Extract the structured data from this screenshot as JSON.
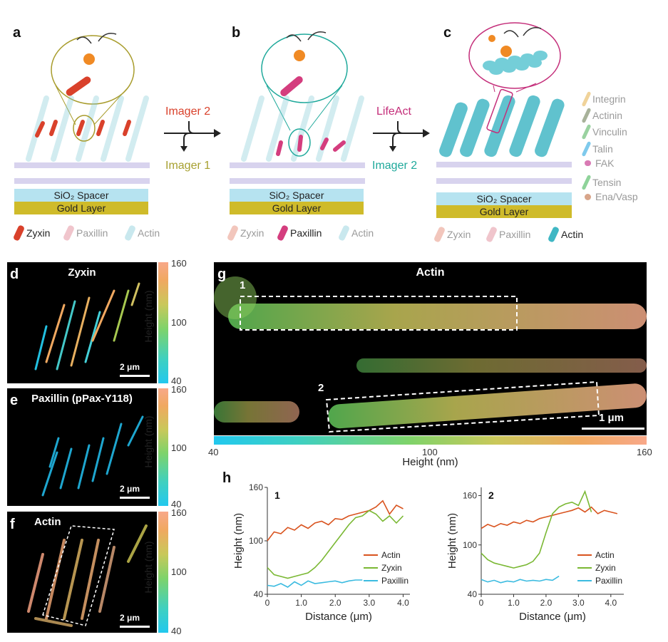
{
  "panels": {
    "a": {
      "label": "a",
      "spacer": "SiO₂ Spacer",
      "gold": "Gold Layer",
      "legend": [
        "Zyxin",
        "Paxillin",
        "Actin"
      ],
      "active": "Zyxin",
      "color": "#d9412b"
    },
    "b": {
      "label": "b",
      "spacer": "SiO₂ Spacer",
      "gold": "Gold Layer",
      "legend": [
        "Zyxin",
        "Paxillin",
        "Actin"
      ],
      "active": "Paxillin",
      "color": "#d43d7e"
    },
    "c": {
      "label": "c",
      "spacer": "SiO₂ Spacer",
      "gold": "Gold Layer",
      "legend": [
        "Zyxin",
        "Paxillin",
        "Actin"
      ],
      "active": "Actin",
      "color": "#3fb7c4"
    },
    "arrow1": {
      "top": "Imager 2",
      "bottom": "Imager 1",
      "top_color": "#d9412b",
      "bottom_color": "#a7a030"
    },
    "arrow2": {
      "top": "LifeAct",
      "bottom": "Imager 2",
      "top_color": "#c42e7a",
      "bottom_color": "#1fa99b"
    },
    "protein_legend": [
      "Integrin",
      "Actinin",
      "Vinculin",
      "Talin",
      "FAK",
      "Tensin",
      "Ena/Vasp"
    ],
    "d": {
      "label": "d",
      "title": "Zyxin",
      "scale": "2 μm"
    },
    "e": {
      "label": "e",
      "title": "Paxillin (pPax-Y118)",
      "scale": "2 μm"
    },
    "f": {
      "label": "f",
      "title": "Actin",
      "scale": "2 μm"
    },
    "colorbar": {
      "max": "160",
      "mid": "100",
      "min": "40",
      "title": "Height (nm)"
    },
    "g": {
      "label": "g",
      "title": "Actin",
      "roi1": "1",
      "roi2": "2",
      "scale": "1 μm",
      "bar_min": "40",
      "bar_mid": "100",
      "bar_max": "160",
      "bar_title": "Height (nm)"
    },
    "h": {
      "label": "h"
    }
  },
  "chart_data": [
    {
      "type": "line",
      "title": "1",
      "xlabel": "Distance (μm)",
      "ylabel": "Height (nm)",
      "xlim": [
        0,
        4.2
      ],
      "ylim": [
        40,
        160
      ],
      "xticks": [
        "0",
        "1.0",
        "2.0",
        "3.0",
        "4.0"
      ],
      "yticks": [
        "40",
        "100",
        "160"
      ],
      "legend": "right",
      "series": [
        {
          "name": "Actin",
          "color": "#d9531e",
          "x": [
            0,
            0.2,
            0.4,
            0.6,
            0.8,
            1.0,
            1.2,
            1.4,
            1.6,
            1.8,
            2.0,
            2.2,
            2.4,
            2.6,
            2.8,
            3.0,
            3.2,
            3.4,
            3.6,
            3.8,
            4.0
          ],
          "y": [
            100,
            110,
            108,
            115,
            112,
            118,
            114,
            120,
            122,
            118,
            125,
            124,
            128,
            130,
            132,
            134,
            138,
            145,
            130,
            140,
            136
          ]
        },
        {
          "name": "Zyxin",
          "color": "#7ab833",
          "x": [
            0,
            0.2,
            0.4,
            0.6,
            0.8,
            1.0,
            1.2,
            1.4,
            1.6,
            1.8,
            2.0,
            2.2,
            2.4,
            2.6,
            2.8,
            3.0,
            3.2,
            3.4,
            3.6,
            3.8,
            4.0
          ],
          "y": [
            70,
            62,
            60,
            58,
            60,
            62,
            64,
            70,
            78,
            88,
            98,
            108,
            118,
            126,
            128,
            134,
            130,
            122,
            128,
            120,
            128
          ]
        },
        {
          "name": "Paxillin",
          "color": "#3bbbe0",
          "x": [
            0,
            0.2,
            0.4,
            0.6,
            0.8,
            1.0,
            1.2,
            1.4,
            1.6,
            1.8,
            2.0,
            2.2,
            2.4,
            2.6,
            2.8
          ],
          "y": [
            50,
            49,
            52,
            48,
            54,
            50,
            55,
            52,
            53,
            54,
            55,
            53,
            55,
            56,
            56
          ]
        }
      ]
    },
    {
      "type": "line",
      "title": "2",
      "xlabel": "Distance (μm)",
      "ylabel": "Height (nm)",
      "xlim": [
        0,
        4.4
      ],
      "ylim": [
        40,
        170
      ],
      "xticks": [
        "0",
        "1.0",
        "2.0",
        "3.0",
        "4.0"
      ],
      "yticks": [
        "40",
        "100",
        "160"
      ],
      "legend": "right",
      "series": [
        {
          "name": "Actin",
          "color": "#d9531e",
          "x": [
            0,
            0.2,
            0.4,
            0.6,
            0.8,
            1.0,
            1.2,
            1.4,
            1.6,
            1.8,
            2.0,
            2.2,
            2.4,
            2.6,
            2.8,
            3.0,
            3.2,
            3.4,
            3.6,
            3.8,
            4.0,
            4.2
          ],
          "y": [
            120,
            125,
            122,
            126,
            124,
            128,
            126,
            130,
            128,
            132,
            134,
            136,
            138,
            140,
            142,
            145,
            140,
            146,
            138,
            142,
            140,
            138
          ]
        },
        {
          "name": "Zyxin",
          "color": "#7ab833",
          "x": [
            0,
            0.2,
            0.4,
            0.6,
            0.8,
            1.0,
            1.2,
            1.4,
            1.6,
            1.8,
            2.0,
            2.2,
            2.4,
            2.6,
            2.8,
            3.0,
            3.2,
            3.4
          ],
          "y": [
            90,
            82,
            78,
            76,
            74,
            72,
            74,
            76,
            80,
            90,
            115,
            138,
            146,
            150,
            152,
            148,
            165,
            140
          ]
        },
        {
          "name": "Paxillin",
          "color": "#3bbbe0",
          "x": [
            0,
            0.2,
            0.4,
            0.6,
            0.8,
            1.0,
            1.2,
            1.4,
            1.6,
            1.8,
            2.0,
            2.2,
            2.4
          ],
          "y": [
            58,
            55,
            57,
            54,
            56,
            55,
            58,
            56,
            57,
            56,
            58,
            57,
            62
          ]
        }
      ]
    }
  ]
}
